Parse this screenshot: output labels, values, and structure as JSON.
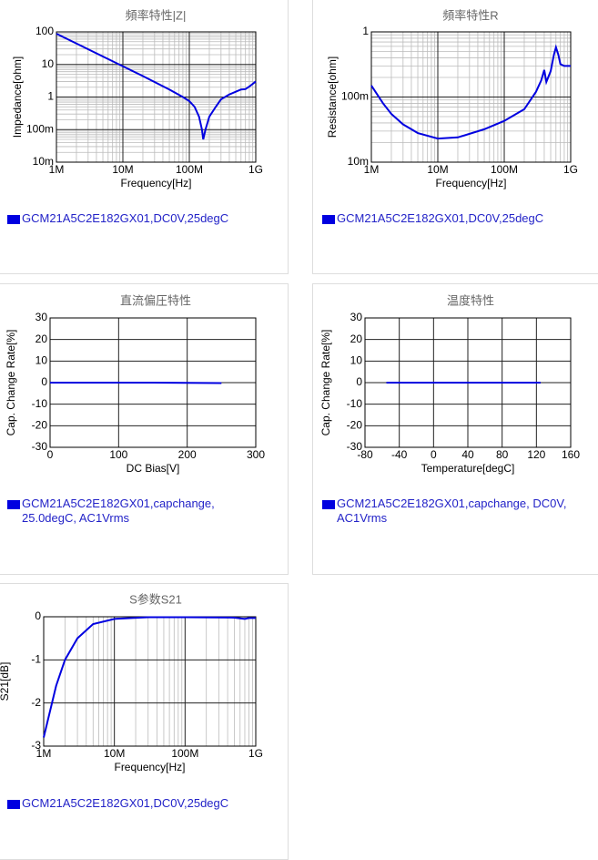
{
  "chart_data": [
    {
      "type": "line",
      "title": "頻率特性|Z|",
      "xlabel": "Frequency[Hz]",
      "ylabel": "Impedance[ohm]",
      "xscale": "log",
      "yscale": "log",
      "xlim": [
        1000000,
        1000000000
      ],
      "xticks": [
        {
          "value": 1000000,
          "label": "1M"
        },
        {
          "value": 10000000,
          "label": "10M"
        },
        {
          "value": 100000000,
          "label": "100M"
        },
        {
          "value": 1000000000,
          "label": "1G"
        }
      ],
      "ylim": [
        0.01,
        100
      ],
      "yticks": [
        {
          "value": 0.01,
          "label": "10m"
        },
        {
          "value": 0.1,
          "label": "100m"
        },
        1,
        10,
        100
      ],
      "series": [
        {
          "name": "GCM21A5C2E182GX01,DC0V,25degC",
          "color": "#0000e0",
          "x": [
            1000000,
            2000000,
            5000000,
            10000000,
            20000000,
            50000000,
            80000000,
            100000000,
            120000000,
            140000000,
            155000000,
            162000000,
            175000000,
            200000000,
            250000000,
            300000000,
            400000000,
            500000000,
            600000000,
            700000000,
            800000000,
            1000000000
          ],
          "values": [
            88,
            44,
            17.6,
            8.8,
            4.4,
            1.7,
            1.0,
            0.75,
            0.5,
            0.25,
            0.1,
            0.05,
            0.1,
            0.25,
            0.5,
            0.85,
            1.2,
            1.45,
            1.7,
            1.75,
            2.1,
            3.0
          ]
        }
      ]
    },
    {
      "type": "line",
      "title": "頻率特性R",
      "xlabel": "Frequency[Hz]",
      "ylabel": "Resistance[ohm]",
      "xscale": "log",
      "yscale": "log",
      "xlim": [
        1000000,
        1000000000
      ],
      "xticks": [
        {
          "value": 1000000,
          "label": "1M"
        },
        {
          "value": 10000000,
          "label": "10M"
        },
        {
          "value": 100000000,
          "label": "100M"
        },
        {
          "value": 1000000000,
          "label": "1G"
        }
      ],
      "ylim": [
        0.01,
        1
      ],
      "yticks": [
        {
          "value": 0.01,
          "label": "10m"
        },
        {
          "value": 0.1,
          "label": "100m"
        },
        1
      ],
      "series": [
        {
          "name": "GCM21A5C2E182GX01,DC0V,25degC",
          "color": "#0000e0",
          "x": [
            1000000,
            1500000,
            2000000,
            3000000,
            5000000,
            10000000,
            20000000,
            50000000,
            100000000,
            200000000,
            300000000,
            360000000,
            400000000,
            430000000,
            500000000,
            560000000,
            600000000,
            650000000,
            700000000,
            800000000,
            1000000000
          ],
          "values": [
            0.15,
            0.08,
            0.055,
            0.038,
            0.028,
            0.023,
            0.024,
            0.032,
            0.043,
            0.065,
            0.12,
            0.18,
            0.26,
            0.17,
            0.25,
            0.45,
            0.58,
            0.45,
            0.32,
            0.3,
            0.3
          ]
        }
      ]
    },
    {
      "type": "line",
      "title": "直流偏圧特性",
      "xlabel": "DC Bias[V]",
      "ylabel": "Cap. Change Rate[%]",
      "xlim": [
        0,
        300
      ],
      "xticks": [
        0,
        100,
        200,
        300
      ],
      "ylim": [
        -30,
        30
      ],
      "yticks": [
        -30,
        -20,
        -10,
        0,
        10,
        20,
        30
      ],
      "series": [
        {
          "name": "GCM21A5C2E182GX01,capchange, 25.0degC, AC1Vrms",
          "color": "#0000e0",
          "x": [
            0,
            50,
            100,
            150,
            200,
            250
          ],
          "values": [
            0,
            0,
            0,
            0,
            -0.1,
            -0.2
          ]
        }
      ]
    },
    {
      "type": "line",
      "title": "温度特性",
      "xlabel": "Temperature[degC]",
      "ylabel": "Cap. Change Rate[%]",
      "xlim": [
        -80,
        160
      ],
      "xticks": [
        -80,
        -40,
        0,
        40,
        80,
        120,
        160
      ],
      "ylim": [
        -30,
        30
      ],
      "yticks": [
        -30,
        -20,
        -10,
        0,
        10,
        20,
        30
      ],
      "series": [
        {
          "name": "GCM21A5C2E182GX01,capchange, DC0V, AC1Vrms",
          "color": "#0000e0",
          "x": [
            -55,
            -25,
            0,
            25,
            85,
            125
          ],
          "values": [
            0,
            0,
            0,
            0,
            0,
            0
          ]
        }
      ]
    },
    {
      "type": "line",
      "title": "S参数S21",
      "xlabel": "Frequency[Hz]",
      "ylabel": "S21[dB]",
      "xscale": "log",
      "xlim": [
        1000000,
        1000000000
      ],
      "xticks": [
        {
          "value": 1000000,
          "label": "1M"
        },
        {
          "value": 10000000,
          "label": "10M"
        },
        {
          "value": 100000000,
          "label": "100M"
        },
        {
          "value": 1000000000,
          "label": "1G"
        }
      ],
      "ylim": [
        -3,
        0
      ],
      "yticks": [
        -3,
        -2,
        -1,
        0
      ],
      "series": [
        {
          "name": "GCM21A5C2E182GX01,DC0V,25degC",
          "color": "#0000e0",
          "x": [
            1000000,
            1500000,
            2000000,
            3000000,
            5000000,
            10000000,
            30000000,
            100000000,
            500000000,
            700000000,
            800000000,
            1000000000
          ],
          "values": [
            -2.8,
            -1.6,
            -1.0,
            -0.5,
            -0.17,
            -0.05,
            -0.01,
            -0.01,
            -0.02,
            -0.05,
            -0.03,
            -0.03
          ]
        }
      ]
    }
  ]
}
